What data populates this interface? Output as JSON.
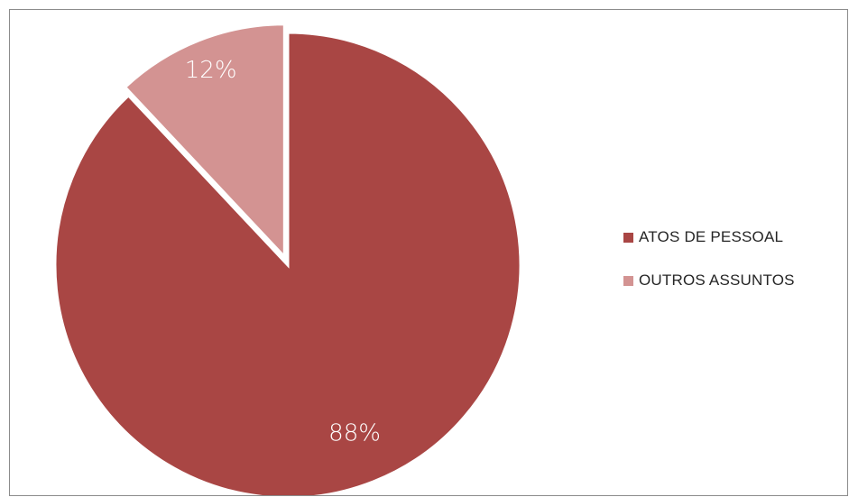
{
  "chart_data": {
    "type": "pie",
    "slices": [
      {
        "label": "ATOS DE PESSOAL",
        "value": 88,
        "display": "88%",
        "color": "#a94644"
      },
      {
        "label": "OUTROS ASSUNTOS",
        "value": 12,
        "display": "12%",
        "color": "#d39392"
      }
    ],
    "legend_position": "right"
  }
}
